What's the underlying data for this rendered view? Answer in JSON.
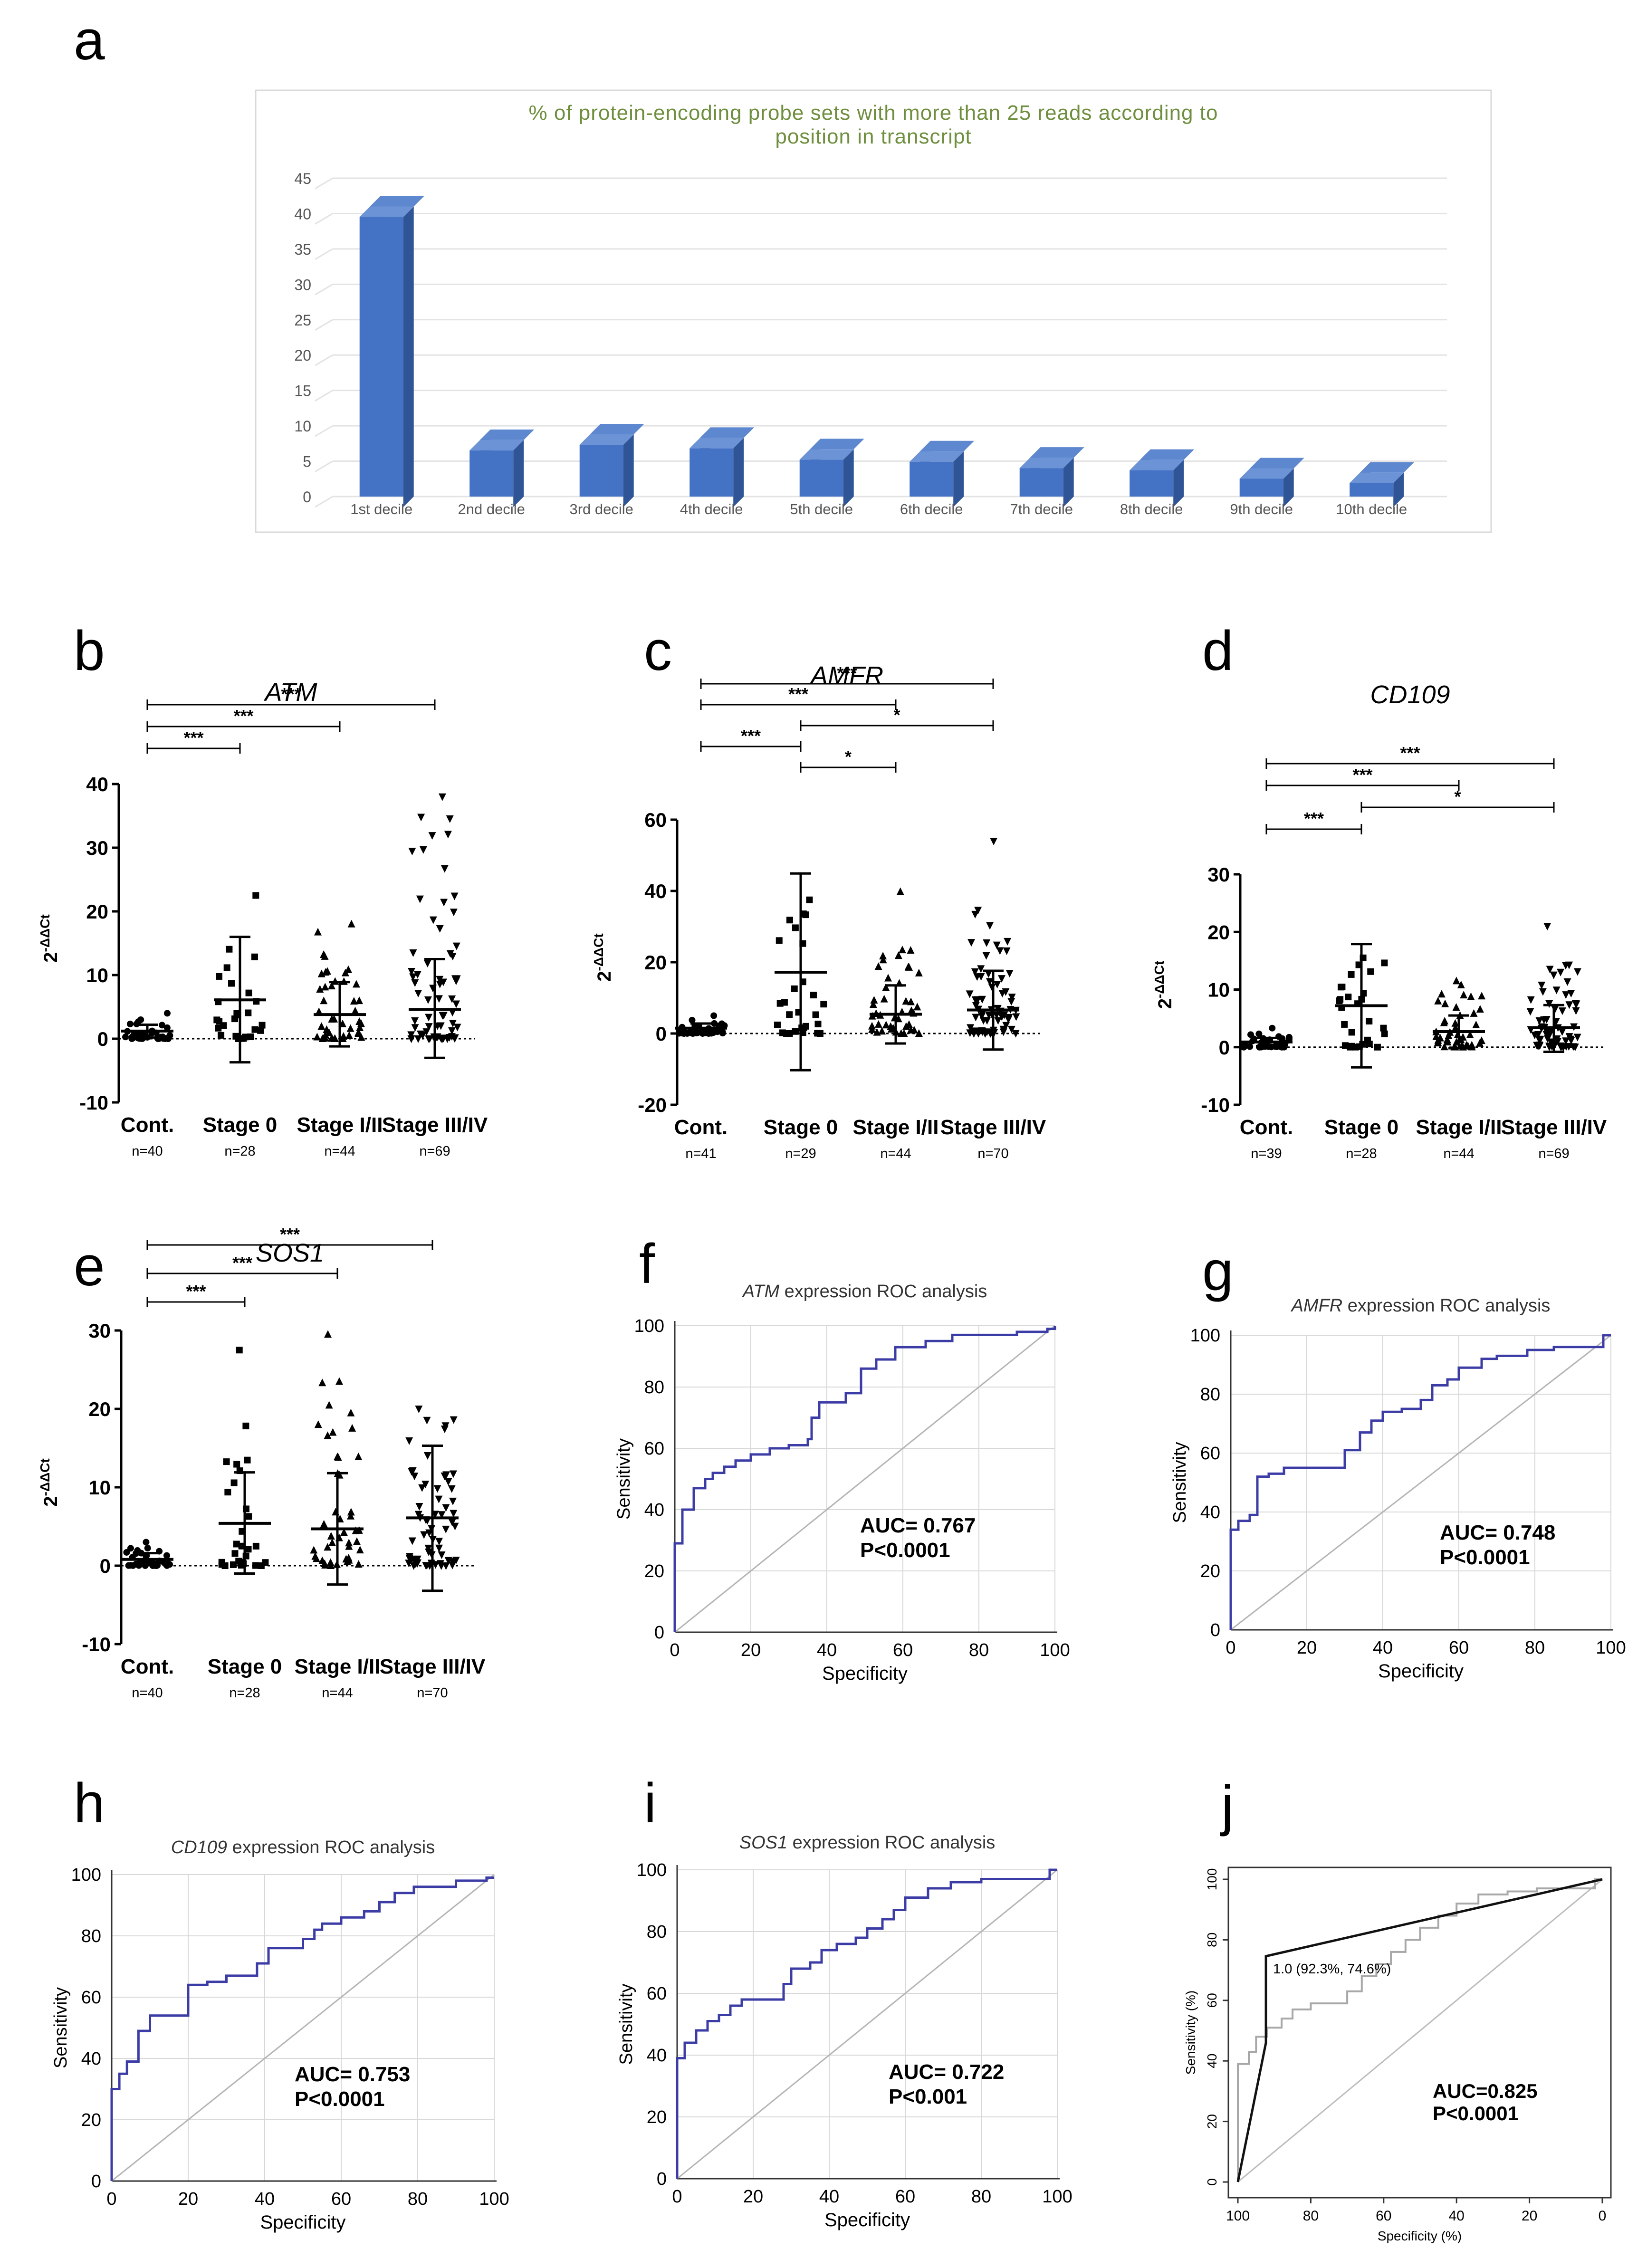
{
  "figure": {
    "panel_letters": [
      "a",
      "b",
      "c",
      "d",
      "e",
      "f",
      "g",
      "h",
      "i",
      "j"
    ]
  },
  "chart_data": [
    {
      "panel": "a",
      "type": "bar",
      "title": "% of protein-encoding probe sets with more than 25 reads according to position in transcript",
      "title_lines": [
        "% of protein-encoding probe sets with more than 25 reads according to",
        "position in transcript"
      ],
      "categories": [
        "1st decile",
        "2nd decile",
        "3rd decile",
        "4th decile",
        "5th decile",
        "6th decile",
        "7th decile",
        "8th decile",
        "9th decile",
        "10th decile"
      ],
      "values": [
        41,
        8,
        8.8,
        8.3,
        6.7,
        6.4,
        5.5,
        5.2,
        4,
        3.4
      ],
      "ylim": [
        0,
        45
      ],
      "yticks": [
        0,
        5,
        10,
        15,
        20,
        25,
        30,
        35,
        40,
        45
      ],
      "bar_color": "#4472c4"
    },
    {
      "panel": "b",
      "type": "scatter",
      "gene": "ATM",
      "ylabel": "2^-ΔΔCt",
      "ylim": [
        -10,
        40
      ],
      "yticks": [
        -10,
        0,
        10,
        20,
        30,
        40
      ],
      "groups": [
        {
          "name": "Cont.",
          "n": "n=40",
          "mean": 1.2,
          "sd_low": 0.2,
          "sd_high": 2.2,
          "marker": "circle",
          "spread": 3,
          "max": 4
        },
        {
          "name": "Stage 0",
          "n": "n=28",
          "mean": 6.1,
          "sd_low": -3.7,
          "sd_high": 16,
          "marker": "square",
          "spread": 22,
          "max": 22.5
        },
        {
          "name": "Stage I/II",
          "n": "n=44",
          "mean": 3.8,
          "sd_low": -1.2,
          "sd_high": 8.9,
          "marker": "triangle-up",
          "spread": 18,
          "max": 18
        },
        {
          "name": "Stage III/IV",
          "n": "n=69",
          "mean": 4.6,
          "sd_low": -3,
          "sd_high": 12.5,
          "marker": "triangle-down",
          "spread": 38,
          "max": 38
        }
      ],
      "significance": [
        {
          "from": 0,
          "to": 1,
          "label": "***"
        },
        {
          "from": 0,
          "to": 2,
          "label": "***"
        },
        {
          "from": 0,
          "to": 3,
          "label": "***"
        }
      ]
    },
    {
      "panel": "c",
      "type": "scatter",
      "gene": "AMFR",
      "ylabel": "2^-ΔΔCt",
      "ylim": [
        -20,
        60
      ],
      "yticks": [
        -20,
        0,
        20,
        40,
        60
      ],
      "groups": [
        {
          "name": "Cont.",
          "n": "n=41",
          "mean": 1.5,
          "sd_low": 0.3,
          "sd_high": 2.8,
          "marker": "circle",
          "spread": 4,
          "max": 5
        },
        {
          "name": "Stage 0",
          "n": "n=29",
          "mean": 17.2,
          "sd_low": -10.3,
          "sd_high": 44.9,
          "marker": "square",
          "spread": 37,
          "max": 37.5
        },
        {
          "name": "Stage I/II",
          "n": "n=44",
          "mean": 5.4,
          "sd_low": -2.8,
          "sd_high": 13.5,
          "marker": "triangle-up",
          "spread": 24,
          "max": 39.8
        },
        {
          "name": "Stage III/IV",
          "n": "n=70",
          "mean": 6.6,
          "sd_low": -4.5,
          "sd_high": 17.6,
          "marker": "triangle-down",
          "spread": 35,
          "max": 54
        }
      ],
      "significance": [
        {
          "from": 0,
          "to": 1,
          "label": "***"
        },
        {
          "from": 0,
          "to": 2,
          "label": "***"
        },
        {
          "from": 0,
          "to": 3,
          "label": "***"
        },
        {
          "from": 1,
          "to": 2,
          "label": "*"
        },
        {
          "from": 1,
          "to": 3,
          "label": "*"
        }
      ]
    },
    {
      "panel": "d",
      "type": "scatter",
      "gene": "CD109",
      "ylabel": "2^-ΔΔCt",
      "ylim": [
        -10,
        30
      ],
      "yticks": [
        -10,
        0,
        10,
        20,
        30
      ],
      "groups": [
        {
          "name": "Cont.",
          "n": "n=39",
          "mean": 0.9,
          "sd_low": 0.2,
          "sd_high": 1.6,
          "marker": "circle",
          "spread": 2.5,
          "max": 3.3
        },
        {
          "name": "Stage 0",
          "n": "n=28",
          "mean": 7.2,
          "sd_low": -3.5,
          "sd_high": 17.9,
          "marker": "square",
          "spread": 15,
          "max": 15.5
        },
        {
          "name": "Stage I/II",
          "n": "n=44",
          "mean": 2.7,
          "sd_low": -0.2,
          "sd_high": 5.5,
          "marker": "triangle-up",
          "spread": 11,
          "max": 11.5
        },
        {
          "name": "Stage III/IV",
          "n": "n=69",
          "mean": 3.4,
          "sd_low": -0.8,
          "sd_high": 7.3,
          "marker": "triangle-down",
          "spread": 15,
          "max": 21
        }
      ],
      "significance": [
        {
          "from": 0,
          "to": 1,
          "label": "***"
        },
        {
          "from": 0,
          "to": 2,
          "label": "***"
        },
        {
          "from": 0,
          "to": 3,
          "label": "***"
        },
        {
          "from": 1,
          "to": 3,
          "label": "*"
        }
      ]
    },
    {
      "panel": "e",
      "type": "scatter",
      "gene": "SOS1",
      "ylabel": "2^-ΔΔCt",
      "ylim": [
        -10,
        30
      ],
      "yticks": [
        -10,
        0,
        10,
        20,
        30
      ],
      "groups": [
        {
          "name": "Cont.",
          "n": "n=40",
          "mean": 0.8,
          "sd_low": 0.1,
          "sd_high": 1.6,
          "marker": "circle",
          "spread": 2.5,
          "max": 3
        },
        {
          "name": "Stage 0",
          "n": "n=28",
          "mean": 5.4,
          "sd_low": -1,
          "sd_high": 11.9,
          "marker": "square",
          "spread": 18,
          "max": 27.5
        },
        {
          "name": "Stage I/II",
          "n": "n=44",
          "mean": 4.7,
          "sd_low": -2.4,
          "sd_high": 11.8,
          "marker": "triangle-up",
          "spread": 24,
          "max": 29.5
        },
        {
          "name": "Stage III/IV",
          "n": "n=70",
          "mean": 6.1,
          "sd_low": -3.2,
          "sd_high": 15.3,
          "marker": "triangle-down",
          "spread": 20,
          "max": 20
        }
      ],
      "significance": [
        {
          "from": 0,
          "to": 1,
          "label": "***"
        },
        {
          "from": 0,
          "to": 2,
          "label": "***"
        },
        {
          "from": 0,
          "to": 3,
          "label": "***"
        }
      ]
    },
    {
      "panel": "f",
      "type": "line",
      "title_gene": "ATM",
      "title_rest": " expression ROC analysis",
      "xlabel": "Specificity",
      "ylabel": "Sensitivity",
      "xlim": [
        0,
        100
      ],
      "ylim": [
        0,
        100
      ],
      "ticks": [
        0,
        20,
        40,
        60,
        80,
        100
      ],
      "auc": "AUC= 0.767",
      "p": "P<0.0001",
      "curve": [
        [
          0,
          0
        ],
        [
          0,
          29
        ],
        [
          2,
          29
        ],
        [
          2,
          40
        ],
        [
          5,
          40
        ],
        [
          5,
          47
        ],
        [
          8,
          47
        ],
        [
          8,
          50
        ],
        [
          10,
          50
        ],
        [
          10,
          52
        ],
        [
          13,
          52
        ],
        [
          13,
          54
        ],
        [
          16,
          54
        ],
        [
          16,
          56
        ],
        [
          20,
          56
        ],
        [
          20,
          58
        ],
        [
          25,
          58
        ],
        [
          25,
          60
        ],
        [
          30,
          60
        ],
        [
          30,
          61
        ],
        [
          35,
          61
        ],
        [
          35,
          63
        ],
        [
          36,
          63
        ],
        [
          36,
          70
        ],
        [
          38,
          70
        ],
        [
          38,
          75
        ],
        [
          45,
          75
        ],
        [
          45,
          78
        ],
        [
          49,
          78
        ],
        [
          49,
          86
        ],
        [
          53,
          86
        ],
        [
          53,
          89
        ],
        [
          58,
          89
        ],
        [
          58,
          93
        ],
        [
          66,
          93
        ],
        [
          66,
          95
        ],
        [
          73,
          95
        ],
        [
          73,
          97
        ],
        [
          90,
          97
        ],
        [
          90,
          98
        ],
        [
          98,
          98
        ],
        [
          98,
          99
        ],
        [
          100,
          99
        ],
        [
          100,
          100
        ]
      ]
    },
    {
      "panel": "g",
      "type": "line",
      "title_gene": "AMFR",
      "title_rest": " expression ROC analysis",
      "xlabel": "Specificity",
      "ylabel": "Sensitivity",
      "xlim": [
        0,
        100
      ],
      "ylim": [
        0,
        100
      ],
      "ticks": [
        0,
        20,
        40,
        60,
        80,
        100
      ],
      "auc": "AUC= 0.748",
      "p": "P<0.0001",
      "curve": [
        [
          0,
          0
        ],
        [
          0,
          34
        ],
        [
          2,
          34
        ],
        [
          2,
          37
        ],
        [
          5,
          37
        ],
        [
          5,
          39
        ],
        [
          7,
          39
        ],
        [
          7,
          52
        ],
        [
          10,
          52
        ],
        [
          10,
          53
        ],
        [
          14,
          53
        ],
        [
          14,
          55
        ],
        [
          30,
          55
        ],
        [
          30,
          61
        ],
        [
          34,
          61
        ],
        [
          34,
          67
        ],
        [
          37,
          67
        ],
        [
          37,
          71
        ],
        [
          40,
          71
        ],
        [
          40,
          74
        ],
        [
          45,
          74
        ],
        [
          45,
          75
        ],
        [
          50,
          75
        ],
        [
          50,
          78
        ],
        [
          53,
          78
        ],
        [
          53,
          83
        ],
        [
          57,
          83
        ],
        [
          57,
          85
        ],
        [
          60,
          85
        ],
        [
          60,
          89
        ],
        [
          66,
          89
        ],
        [
          66,
          92
        ],
        [
          70,
          92
        ],
        [
          70,
          93
        ],
        [
          78,
          93
        ],
        [
          78,
          95
        ],
        [
          85,
          95
        ],
        [
          85,
          96
        ],
        [
          98,
          96
        ],
        [
          98,
          100
        ],
        [
          100,
          100
        ]
      ]
    },
    {
      "panel": "h",
      "type": "line",
      "title_gene": "CD109",
      "title_rest": " expression ROC analysis",
      "xlabel": "Specificity",
      "ylabel": "Sensitivity",
      "xlim": [
        0,
        100
      ],
      "ylim": [
        0,
        100
      ],
      "ticks": [
        0,
        20,
        40,
        60,
        80,
        100
      ],
      "auc": "AUC= 0.753",
      "p": "P<0.0001",
      "curve": [
        [
          0,
          0
        ],
        [
          0,
          30
        ],
        [
          2,
          30
        ],
        [
          2,
          35
        ],
        [
          4,
          35
        ],
        [
          4,
          39
        ],
        [
          7,
          39
        ],
        [
          7,
          49
        ],
        [
          10,
          49
        ],
        [
          10,
          54
        ],
        [
          20,
          54
        ],
        [
          20,
          64
        ],
        [
          25,
          64
        ],
        [
          25,
          65
        ],
        [
          30,
          65
        ],
        [
          30,
          67
        ],
        [
          38,
          67
        ],
        [
          38,
          71
        ],
        [
          41,
          71
        ],
        [
          41,
          76
        ],
        [
          50,
          76
        ],
        [
          50,
          79
        ],
        [
          53,
          79
        ],
        [
          53,
          82
        ],
        [
          55,
          82
        ],
        [
          55,
          84
        ],
        [
          60,
          84
        ],
        [
          60,
          86
        ],
        [
          66,
          86
        ],
        [
          66,
          88
        ],
        [
          70,
          88
        ],
        [
          70,
          91
        ],
        [
          74,
          91
        ],
        [
          74,
          94
        ],
        [
          79,
          94
        ],
        [
          79,
          96
        ],
        [
          90,
          96
        ],
        [
          90,
          98
        ],
        [
          98,
          98
        ],
        [
          98,
          99
        ],
        [
          100,
          99
        ]
      ]
    },
    {
      "panel": "i",
      "type": "line",
      "title_gene": "SOS1",
      "title_rest": "  expression ROC analysis",
      "xlabel": "Specificity",
      "ylabel": "Sensitivity",
      "xlim": [
        0,
        100
      ],
      "ylim": [
        0,
        100
      ],
      "ticks": [
        0,
        20,
        40,
        60,
        80,
        100
      ],
      "auc": "AUC= 0.722",
      "p": "P<0.001",
      "curve": [
        [
          0,
          0
        ],
        [
          0,
          39
        ],
        [
          2,
          39
        ],
        [
          2,
          44
        ],
        [
          5,
          44
        ],
        [
          5,
          48
        ],
        [
          8,
          48
        ],
        [
          8,
          51
        ],
        [
          11,
          51
        ],
        [
          11,
          53
        ],
        [
          14,
          53
        ],
        [
          14,
          56
        ],
        [
          17,
          56
        ],
        [
          17,
          58
        ],
        [
          28,
          58
        ],
        [
          28,
          63
        ],
        [
          30,
          63
        ],
        [
          30,
          68
        ],
        [
          35,
          68
        ],
        [
          35,
          70
        ],
        [
          38,
          70
        ],
        [
          38,
          74
        ],
        [
          42,
          74
        ],
        [
          42,
          76
        ],
        [
          47,
          76
        ],
        [
          47,
          78
        ],
        [
          50,
          78
        ],
        [
          50,
          81
        ],
        [
          54,
          81
        ],
        [
          54,
          84
        ],
        [
          57,
          84
        ],
        [
          57,
          87
        ],
        [
          60,
          87
        ],
        [
          60,
          91
        ],
        [
          66,
          91
        ],
        [
          66,
          94
        ],
        [
          72,
          94
        ],
        [
          72,
          96
        ],
        [
          80,
          96
        ],
        [
          80,
          97
        ],
        [
          98,
          97
        ],
        [
          98,
          100
        ],
        [
          100,
          100
        ]
      ]
    },
    {
      "panel": "j",
      "type": "line",
      "xlabel": "Specificity (%)",
      "ylabel": "Sensitivity (%)",
      "x_reversed": true,
      "xlim": [
        100,
        0
      ],
      "ylim": [
        0,
        100
      ],
      "xticks": [
        100,
        80,
        60,
        40,
        20,
        0
      ],
      "yticks": [
        0,
        20,
        40,
        60,
        80,
        100
      ],
      "auc": "AUC=0.825",
      "p": "P<0.0001",
      "annotation": "1.0 (92.3%, 74.6%)",
      "model_curve": [
        [
          100,
          0
        ],
        [
          92.3,
          46
        ],
        [
          92.3,
          74.6
        ],
        [
          0,
          100
        ]
      ],
      "single_curve": [
        [
          100,
          0
        ],
        [
          100,
          39
        ],
        [
          97,
          39
        ],
        [
          97,
          43
        ],
        [
          95,
          43
        ],
        [
          95,
          48
        ],
        [
          92,
          48
        ],
        [
          92,
          51
        ],
        [
          88,
          51
        ],
        [
          88,
          54
        ],
        [
          85,
          54
        ],
        [
          85,
          57
        ],
        [
          80,
          57
        ],
        [
          80,
          59
        ],
        [
          70,
          59
        ],
        [
          70,
          63
        ],
        [
          66,
          63
        ],
        [
          66,
          68
        ],
        [
          62,
          68
        ],
        [
          62,
          72
        ],
        [
          58,
          72
        ],
        [
          58,
          76
        ],
        [
          54,
          76
        ],
        [
          54,
          80
        ],
        [
          50,
          80
        ],
        [
          50,
          84
        ],
        [
          45,
          84
        ],
        [
          45,
          88
        ],
        [
          40,
          88
        ],
        [
          40,
          92
        ],
        [
          34,
          92
        ],
        [
          34,
          95
        ],
        [
          26,
          95
        ],
        [
          26,
          96
        ],
        [
          18,
          96
        ],
        [
          18,
          97
        ],
        [
          2,
          97
        ],
        [
          2,
          100
        ],
        [
          0,
          100
        ]
      ]
    }
  ]
}
